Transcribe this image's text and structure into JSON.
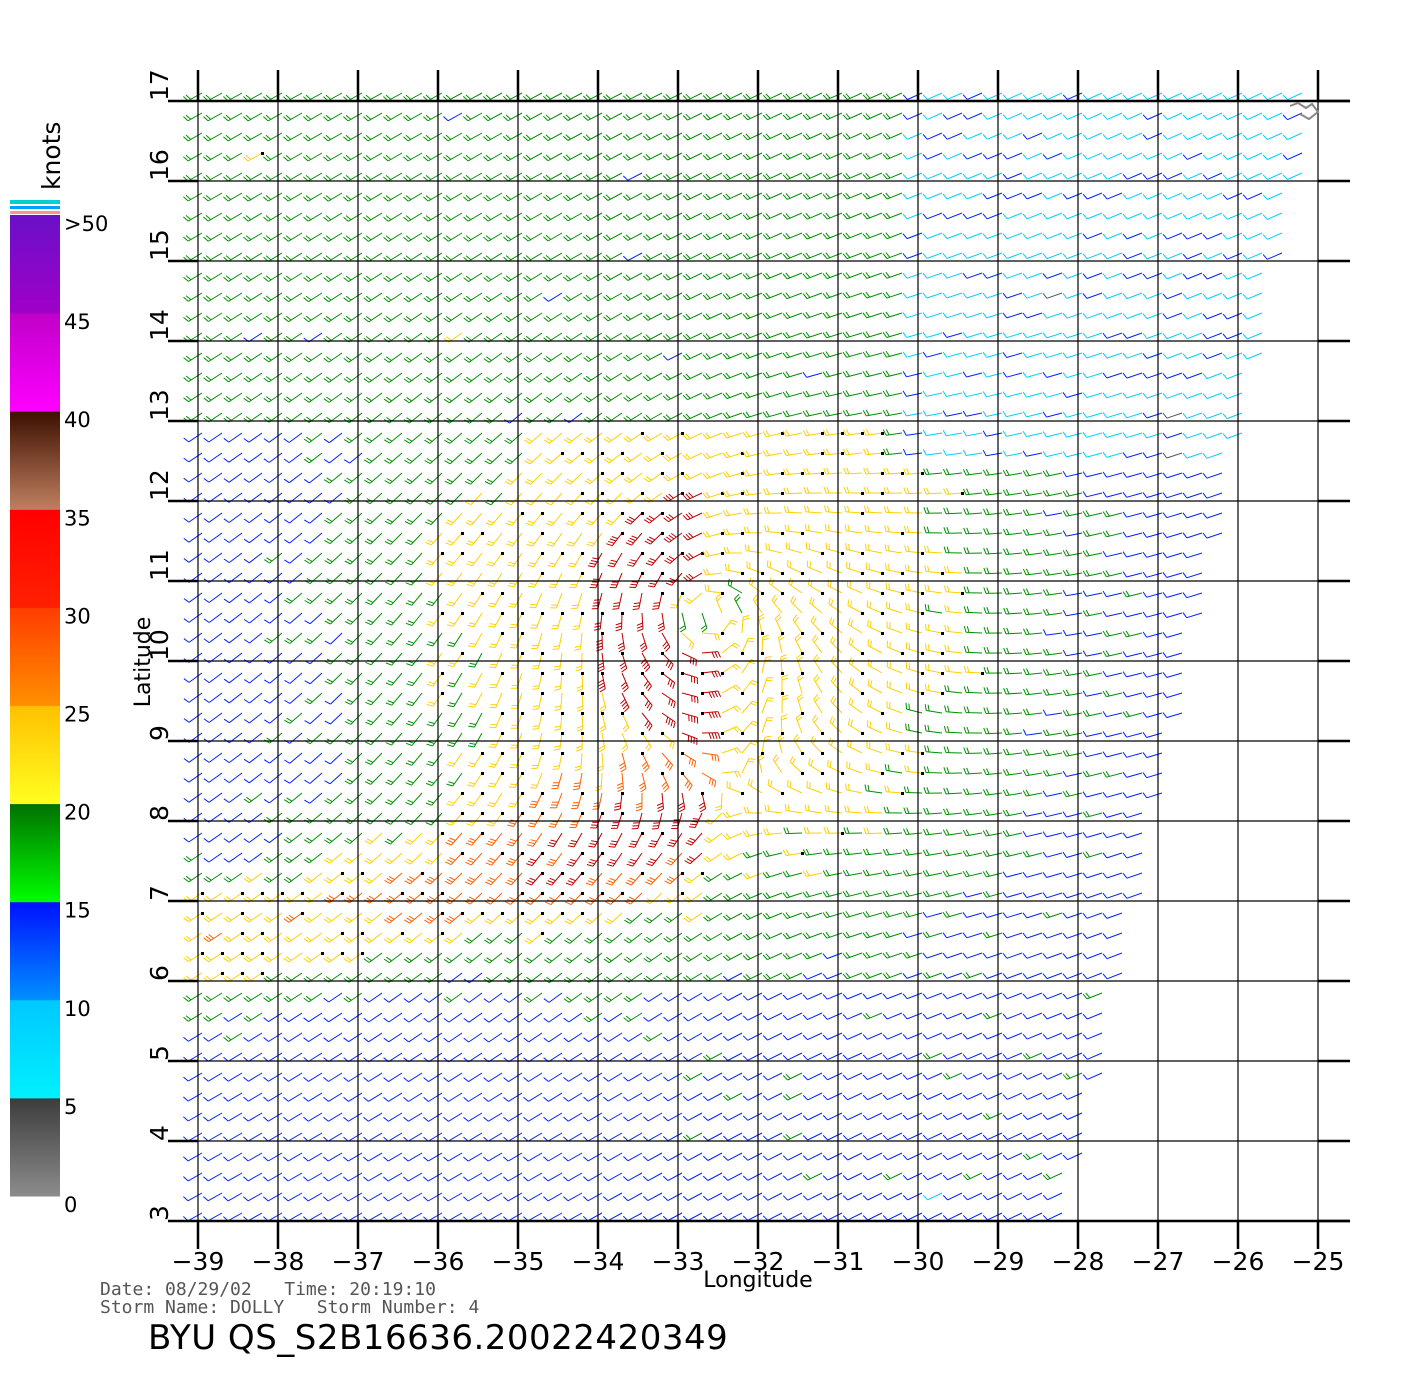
{
  "map": {
    "x_axis_title": "Longitude",
    "y_axis_title": "Latitude",
    "lon_ticks": [
      "-39",
      "-38",
      "-37",
      "-36",
      "-35",
      "-34",
      "-33",
      "-32",
      "-31",
      "-30",
      "-29",
      "-28",
      "-27",
      "-26",
      "-25"
    ],
    "lat_ticks": [
      "3",
      "4",
      "5",
      "6",
      "7",
      "8",
      "9",
      "10",
      "11",
      "12",
      "13",
      "14",
      "15",
      "16",
      "17"
    ],
    "lon_range": [
      -39,
      -25
    ],
    "lat_range": [
      3,
      17
    ],
    "vector_field": {
      "type": "wind-barbs",
      "storm_center_lon": -32.6,
      "storm_center_lat": 10.6,
      "swath_right_edge": "slanted, from about -25 at 17N to -28 at 3N"
    }
  },
  "scale": {
    "unit": "knots",
    "labels": [
      ">50",
      "45",
      "40",
      "35",
      "30",
      "25",
      "20",
      "15",
      "10",
      "5",
      "0"
    ],
    "bands": [
      {
        "from": 0,
        "to": 5,
        "top": "#3c3c3c",
        "bottom": "#8c8c8c"
      },
      {
        "from": 5,
        "to": 10,
        "top": "#00c8ff",
        "bottom": "#00f0ff"
      },
      {
        "from": 10,
        "to": 15,
        "top": "#0010ff",
        "bottom": "#0090ff"
      },
      {
        "from": 15,
        "to": 20,
        "top": "#007000",
        "bottom": "#00ff00"
      },
      {
        "from": 20,
        "to": 25,
        "top": "#ffc000",
        "bottom": "#ffff20"
      },
      {
        "from": 25,
        "to": 30,
        "top": "#ff3c00",
        "bottom": "#ff9000"
      },
      {
        "from": 30,
        "to": 35,
        "top": "#ff0000",
        "bottom": "#ff2000"
      },
      {
        "from": 35,
        "to": 40,
        "top": "#3c0f00",
        "bottom": "#c08060"
      },
      {
        "from": 40,
        "to": 45,
        "top": "#c000c8",
        "bottom": "#ff00ff"
      },
      {
        "from": 45,
        "to": 50,
        "top": "#6a10c8",
        "bottom": "#a000c8"
      }
    ],
    "speed_colors": {
      "calm": "#555555",
      "light": "#00d0ff",
      "moderate": "#0022ff",
      "fresh": "#009000",
      "strong": "#ffd000",
      "gale": "#ff6000",
      "storm": "#c00000",
      "violent": "#9000c0"
    }
  },
  "footer": {
    "date_line": "Date: 08/29/02   Time: 20:19:10",
    "storm_line": "Storm Name: DOLLY   Storm Number: 4",
    "product_id": "BYU QS_S2B16636.20022420349"
  }
}
